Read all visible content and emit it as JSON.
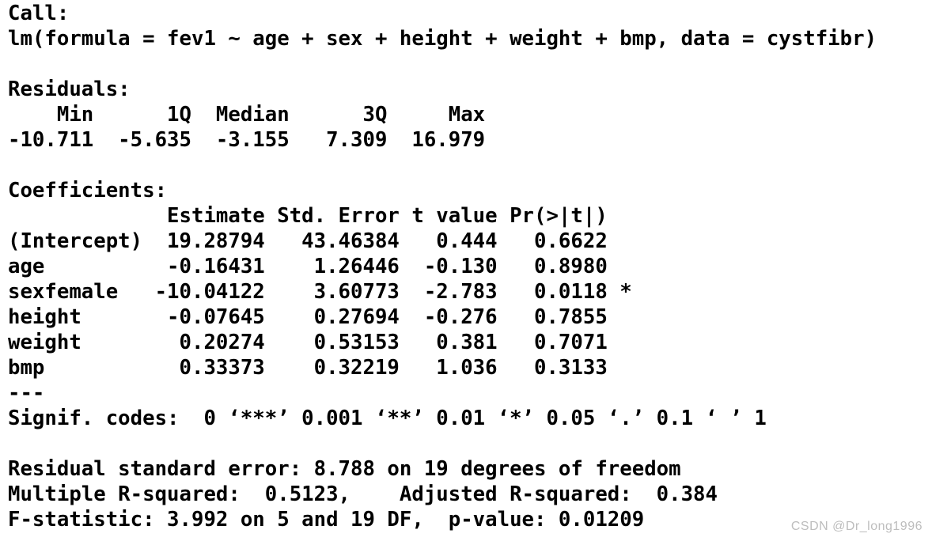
{
  "page": {
    "background_color": "#ffffff",
    "text_color": "#000000"
  },
  "console": {
    "call": {
      "label": "Call:",
      "formula": "lm(formula = fev1 ~ age + sex + height + weight + bmp, data = cystfibr)"
    },
    "residuals": {
      "label": "Residuals:",
      "columns": [
        "Min",
        "1Q",
        "Median",
        "3Q",
        "Max"
      ],
      "values": [
        "-10.711",
        "-5.635",
        "-3.155",
        "7.309",
        "16.979"
      ]
    },
    "coefficients": {
      "label": "Coefficients:",
      "columns": [
        "Estimate",
        "Std. Error",
        "t value",
        "Pr(>|t|)"
      ],
      "rows": [
        {
          "name": "(Intercept)",
          "values": [
            "19.28794",
            "43.46384",
            "0.444",
            "0.6622"
          ],
          "signif": ""
        },
        {
          "name": "age",
          "values": [
            "-0.16431",
            "1.26446",
            "-0.130",
            "0.8980"
          ],
          "signif": ""
        },
        {
          "name": "sexfemale",
          "values": [
            "-10.04122",
            "3.60773",
            "-2.783",
            "0.0118"
          ],
          "signif": "*"
        },
        {
          "name": "height",
          "values": [
            "-0.07645",
            "0.27694",
            "-0.276",
            "0.7855"
          ],
          "signif": ""
        },
        {
          "name": "weight",
          "values": [
            "0.20274",
            "0.53153",
            "0.381",
            "0.7071"
          ],
          "signif": ""
        },
        {
          "name": "bmp",
          "values": [
            "0.33373",
            "0.32219",
            "1.036",
            "0.3133"
          ],
          "signif": ""
        }
      ]
    },
    "signif": {
      "separator": "---",
      "label": "Signif. codes:",
      "codes": "0 ‘***’ 0.001 ‘**’ 0.01 ‘*’ 0.05 ‘.’ 0.1 ‘ ’ 1"
    },
    "footer": {
      "residual_standard_error": "Residual standard error: 8.788 on 19 degrees of freedom",
      "r_squared": "Multiple R-squared:  0.5123,    Adjusted R-squared:  0.384",
      "f_statistic": "F-statistic: 3.992 on 5 and 19 DF,  p-value: 0.01209"
    }
  },
  "watermark": {
    "text": "CSDN @Dr_long1996",
    "color": "#bdbdbd"
  }
}
